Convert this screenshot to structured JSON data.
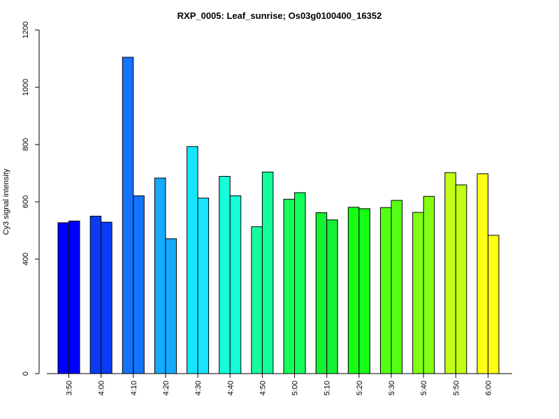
{
  "chart_data": {
    "type": "bar",
    "title": "RXP_0005: Leaf_sunrise; Os03g0100400_16352",
    "xlabel": "",
    "ylabel": "Cy3 signal intensity",
    "ylim": [
      0,
      1200
    ],
    "yticks": [
      0,
      400,
      600,
      800,
      1000,
      1200
    ],
    "grid": false,
    "legend": "none",
    "categories": [
      "3:50",
      "4:00",
      "4:10",
      "4:20",
      "4:30",
      "4:40",
      "4:50",
      "5:00",
      "5:10",
      "5:20",
      "5:30",
      "5:40",
      "5:50",
      "6:00"
    ],
    "category_colors": [
      "#0000ff",
      "#0a3cf5",
      "#1473ff",
      "#14aaff",
      "#14e6ff",
      "#14ffdc",
      "#14ff9b",
      "#14ff5a",
      "#14f032",
      "#14ff14",
      "#55ff14",
      "#82ff14",
      "#c3ff14",
      "#ffff14"
    ],
    "series": [
      {
        "values": [
          527,
          550,
          1105,
          683,
          793,
          689,
          513,
          609,
          562,
          581,
          580,
          563,
          702,
          698
        ]
      },
      {
        "values": [
          533,
          529,
          621,
          471,
          613,
          621,
          704,
          632,
          537,
          576,
          605,
          619,
          659,
          483
        ]
      }
    ]
  }
}
